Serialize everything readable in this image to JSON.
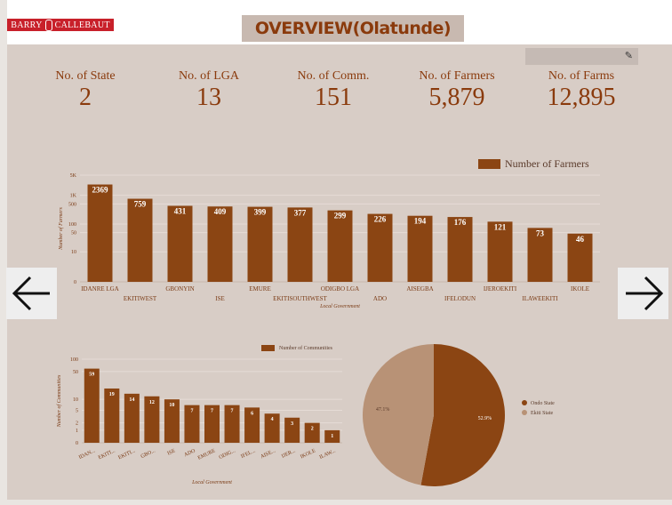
{
  "header": {
    "brand_left": "BARRY",
    "brand_right": "CALLEBAUT",
    "title": "OVERVIEW(Olatunde)"
  },
  "kpis": [
    {
      "label": "No. of State",
      "value": "2"
    },
    {
      "label": "No. of LGA",
      "value": "13"
    },
    {
      "label": "No. of Comm.",
      "value": "151"
    },
    {
      "label": "No. of Farmers",
      "value": "5,879"
    },
    {
      "label": "No. of Farms",
      "value": "12,895"
    }
  ],
  "icons": {
    "edit": "pencil-icon",
    "prev": "arrow-left-icon",
    "next": "arrow-right-icon"
  },
  "colors": {
    "bar": "#8b4513",
    "secondary": "#b89276",
    "kpi_text": "#8a3a0c",
    "background": "#d8cdc6"
  },
  "chart_data": [
    {
      "type": "bar",
      "title": "",
      "xlabel": "Local Government",
      "ylabel": "Number of Farmers",
      "scale": "log",
      "yticks": [
        "0",
        "10",
        "50",
        "100",
        "500",
        "1K",
        "5K"
      ],
      "legend": "top-right",
      "series": [
        {
          "name": "Number of Farmers",
          "values": [
            2369,
            759,
            431,
            409,
            399,
            377,
            299,
            226,
            194,
            176,
            121,
            73,
            46
          ]
        }
      ],
      "categories": [
        "IDANRE LGA",
        "EKITIWEST",
        "GBONYIN",
        "ISE",
        "EMURE",
        "EKITISOUTHWEST",
        "ODIGBO LGA",
        "ADO",
        "AISEGBA",
        "IFELODUN",
        "IJEROEKITI",
        "ILAWEEKITI",
        "IKOLE"
      ]
    },
    {
      "type": "bar",
      "title": "",
      "xlabel": "Local Government",
      "ylabel": "Number of Communities",
      "scale": "log",
      "yticks": [
        "0",
        "1",
        "2",
        "5",
        "10",
        "50",
        "100"
      ],
      "legend": "top",
      "series": [
        {
          "name": "Number of Communities",
          "values": [
            59,
            19,
            14,
            12,
            10,
            7,
            7,
            7,
            6,
            4,
            3,
            2,
            1
          ]
        }
      ],
      "categories": [
        "IDAN...",
        "EKITI...",
        "EKITI...",
        "GBO...",
        "ISE",
        "ADO",
        "EMURE",
        "ODIG...",
        "IFEL...",
        "AISE...",
        "IJER...",
        "IKOLE",
        "ILAW..."
      ]
    },
    {
      "type": "pie",
      "title": "",
      "legend": "right",
      "slices": [
        {
          "label": "Ondo State",
          "value": 52.9,
          "display": "52.9%",
          "color": "#8b4513"
        },
        {
          "label": "Ekiti State",
          "value": 47.1,
          "display": "47.1%",
          "color": "#b89276"
        }
      ]
    }
  ]
}
